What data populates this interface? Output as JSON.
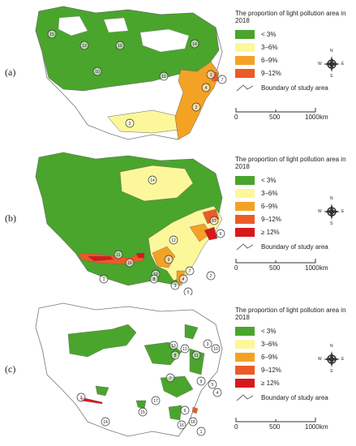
{
  "panels": [
    {
      "label": "(a)",
      "legend_title": "The proportion of light pollution area in 2018",
      "classes": [
        {
          "label": "< 3%",
          "color": "#4aa52c"
        },
        {
          "label": "3–6%",
          "color": "#fdf79b"
        },
        {
          "label": "6–9%",
          "color": "#f4a223"
        },
        {
          "label": "9–12%",
          "color": "#ec5b25"
        }
      ],
      "boundary_label": "Boundary of study area",
      "scale": {
        "ticks": [
          "0",
          "500",
          "1000"
        ],
        "unit": "km"
      },
      "compass": {
        "n": "N",
        "s": "S",
        "e": "E",
        "w": "W"
      },
      "markers": [
        "15",
        "13",
        "16",
        "10",
        "14",
        "11",
        "1",
        "7",
        "4",
        "2",
        "3"
      ]
    },
    {
      "label": "(b)",
      "legend_title": "The proportion of light pollution area in 2018",
      "classes": [
        {
          "label": "< 3%",
          "color": "#4aa52c"
        },
        {
          "label": "3–6%",
          "color": "#fdf79b"
        },
        {
          "label": "6–9%",
          "color": "#f4a223"
        },
        {
          "label": "9–12%",
          "color": "#ec5b25"
        },
        {
          "label": "≥ 12%",
          "color": "#d7191c"
        }
      ],
      "boundary_label": "Boundary of study area",
      "scale": {
        "ticks": [
          "0",
          "500",
          "1000"
        ],
        "unit": "km"
      },
      "compass": {
        "n": "N",
        "s": "S",
        "e": "E",
        "w": "W"
      },
      "markers": [
        "14",
        "13",
        "6",
        "12",
        "11",
        "16",
        "10",
        "9",
        "8",
        "3",
        "7",
        "2",
        "4",
        "1",
        "5"
      ]
    },
    {
      "label": "(c)",
      "legend_title": "The proportion of light pollution area in 2018",
      "classes": [
        {
          "label": "< 3%",
          "color": "#4aa52c"
        },
        {
          "label": "3–6%",
          "color": "#fdf79b"
        },
        {
          "label": "6–9%",
          "color": "#f4a223"
        },
        {
          "label": "9–12%",
          "color": "#ec5b25"
        },
        {
          "label": "≥ 12%",
          "color": "#d7191c"
        }
      ],
      "boundary_label": "Boundary of study area",
      "scale": {
        "ticks": [
          "0",
          "500",
          "1000"
        ],
        "unit": "km"
      },
      "compass": {
        "n": "N",
        "s": "S",
        "e": "E",
        "w": "W"
      },
      "markers": [
        "13",
        "12",
        "11",
        "3",
        "10",
        "9",
        "5",
        "4",
        "8",
        "7",
        "6",
        "18",
        "17",
        "15",
        "16",
        "1",
        "2",
        "14"
      ]
    }
  ]
}
